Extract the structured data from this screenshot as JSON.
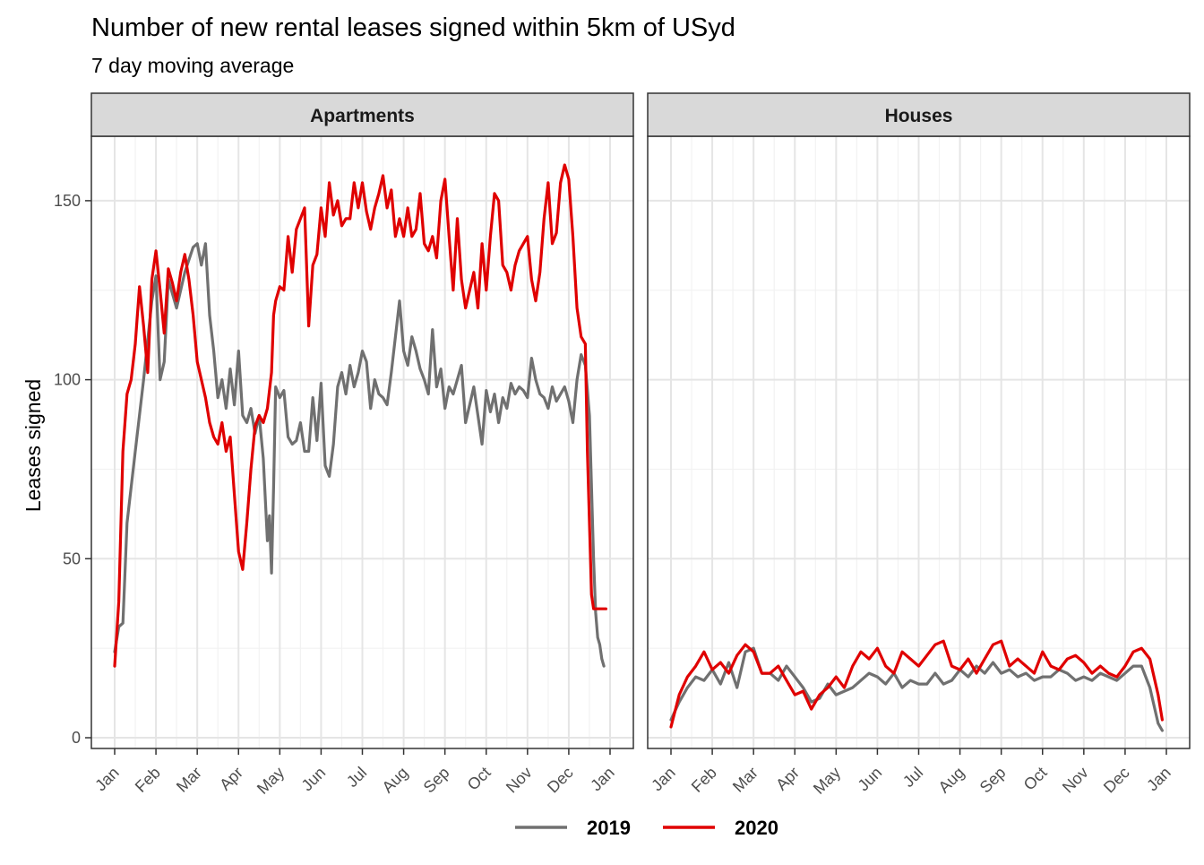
{
  "chart_data": {
    "type": "line",
    "title": "Number of new rental leases signed within 5km of USyd",
    "subtitle": "7 day moving average",
    "xlabel": "",
    "ylabel": "Leases signed",
    "ylim": [
      -3,
      168
    ],
    "yticks": [
      0,
      50,
      100,
      150
    ],
    "xticks": [
      "Jan",
      "Feb",
      "Mar",
      "Apr",
      "May",
      "Jun",
      "Jul",
      "Aug",
      "Sep",
      "Oct",
      "Nov",
      "Dec",
      "Jan"
    ],
    "grid": true,
    "legend_position": "bottom",
    "colors": {
      "2019": "#707070",
      "2020": "#e00000"
    },
    "panels": [
      {
        "name": "Apartments",
        "series": [
          {
            "name": "2019",
            "x_month": [
              0,
              0.1,
              0.2,
              0.3,
              0.5,
              0.7,
              0.9,
              1.0,
              1.1,
              1.2,
              1.3,
              1.5,
              1.7,
              1.9,
              2.0,
              2.1,
              2.2,
              2.3,
              2.4,
              2.5,
              2.6,
              2.7,
              2.8,
              2.9,
              3.0,
              3.1,
              3.2,
              3.3,
              3.4,
              3.5,
              3.6,
              3.7,
              3.75,
              3.8,
              3.85,
              3.9,
              4.0,
              4.1,
              4.2,
              4.3,
              4.4,
              4.5,
              4.6,
              4.7,
              4.8,
              4.9,
              5.0,
              5.1,
              5.2,
              5.3,
              5.4,
              5.5,
              5.6,
              5.7,
              5.8,
              5.9,
              6.0,
              6.1,
              6.2,
              6.3,
              6.4,
              6.5,
              6.6,
              6.7,
              6.8,
              6.9,
              7.0,
              7.1,
              7.2,
              7.3,
              7.4,
              7.5,
              7.6,
              7.7,
              7.8,
              7.9,
              8.0,
              8.1,
              8.2,
              8.3,
              8.4,
              8.5,
              8.6,
              8.7,
              8.8,
              8.9,
              9.0,
              9.1,
              9.2,
              9.3,
              9.4,
              9.5,
              9.6,
              9.7,
              9.8,
              9.9,
              10.0,
              10.1,
              10.2,
              10.3,
              10.4,
              10.5,
              10.6,
              10.7,
              10.8,
              10.9,
              11.0,
              11.1,
              11.2,
              11.3,
              11.4,
              11.5,
              11.55,
              11.6,
              11.65,
              11.7,
              11.75,
              11.8,
              11.85
            ],
            "values": [
              24,
              31,
              32,
              60,
              80,
              100,
              122,
              129,
              100,
              105,
              128,
              120,
              130,
              137,
              138,
              132,
              138,
              118,
              108,
              95,
              100,
              92,
              103,
              93,
              108,
              90,
              88,
              92,
              85,
              90,
              78,
              55,
              62,
              46,
              70,
              98,
              95,
              97,
              84,
              82,
              83,
              88,
              80,
              80,
              95,
              83,
              99,
              76,
              73,
              82,
              98,
              102,
              96,
              104,
              98,
              102,
              108,
              105,
              92,
              100,
              96,
              95,
              93,
              102,
              112,
              122,
              108,
              104,
              112,
              108,
              103,
              100,
              96,
              114,
              98,
              103,
              92,
              98,
              96,
              100,
              104,
              88,
              93,
              98,
              90,
              82,
              97,
              91,
              96,
              88,
              95,
              92,
              99,
              96,
              98,
              97,
              95,
              106,
              100,
              96,
              95,
              92,
              98,
              94,
              96,
              98,
              94,
              88,
              100,
              107,
              104,
              90,
              70,
              50,
              35,
              28,
              26,
              22,
              20
            ]
          },
          {
            "name": "2020",
            "x_month": [
              0,
              0.1,
              0.2,
              0.3,
              0.4,
              0.5,
              0.6,
              0.7,
              0.8,
              0.9,
              1.0,
              1.1,
              1.2,
              1.3,
              1.4,
              1.5,
              1.6,
              1.7,
              1.8,
              1.9,
              2.0,
              2.1,
              2.2,
              2.3,
              2.4,
              2.5,
              2.6,
              2.7,
              2.8,
              2.9,
              3.0,
              3.1,
              3.2,
              3.3,
              3.4,
              3.5,
              3.6,
              3.7,
              3.8,
              3.85,
              3.9,
              4.0,
              4.1,
              4.2,
              4.3,
              4.4,
              4.5,
              4.6,
              4.7,
              4.8,
              4.9,
              5.0,
              5.1,
              5.2,
              5.3,
              5.4,
              5.5,
              5.6,
              5.7,
              5.8,
              5.9,
              6.0,
              6.1,
              6.2,
              6.3,
              6.4,
              6.5,
              6.6,
              6.7,
              6.8,
              6.9,
              7.0,
              7.1,
              7.2,
              7.3,
              7.4,
              7.5,
              7.6,
              7.7,
              7.8,
              7.9,
              8.0,
              8.1,
              8.2,
              8.3,
              8.4,
              8.5,
              8.6,
              8.7,
              8.8,
              8.9,
              9.0,
              9.1,
              9.2,
              9.3,
              9.4,
              9.5,
              9.6,
              9.7,
              9.8,
              9.9,
              10.0,
              10.1,
              10.2,
              10.3,
              10.4,
              10.5,
              10.6,
              10.7,
              10.8,
              10.9,
              11.0,
              11.1,
              11.2,
              11.3,
              11.4,
              11.45,
              11.5,
              11.55,
              11.6,
              11.65,
              11.7,
              11.8,
              11.9
            ],
            "values": [
              20,
              38,
              80,
              96,
              100,
              110,
              126,
              115,
              102,
              128,
              136,
              125,
              113,
              131,
              127,
              122,
              130,
              135,
              128,
              118,
              105,
              100,
              95,
              88,
              84,
              82,
              88,
              80,
              84,
              68,
              52,
              47,
              60,
              75,
              87,
              90,
              88,
              92,
              102,
              118,
              122,
              126,
              125,
              140,
              130,
              142,
              145,
              148,
              115,
              132,
              135,
              148,
              140,
              155,
              146,
              150,
              143,
              145,
              145,
              155,
              148,
              155,
              147,
              142,
              148,
              152,
              157,
              148,
              153,
              140,
              145,
              140,
              148,
              140,
              142,
              152,
              138,
              136,
              140,
              134,
              150,
              156,
              140,
              125,
              145,
              128,
              120,
              125,
              130,
              120,
              138,
              125,
              140,
              152,
              150,
              132,
              130,
              125,
              132,
              136,
              138,
              140,
              128,
              122,
              130,
              145,
              155,
              138,
              141,
              155,
              160,
              156,
              140,
              120,
              112,
              110,
              80,
              60,
              40,
              36,
              36,
              36,
              36,
              36
            ]
          }
        ]
      },
      {
        "name": "Houses",
        "series": [
          {
            "name": "2019",
            "x_month": [
              0,
              0.2,
              0.4,
              0.6,
              0.8,
              1.0,
              1.2,
              1.4,
              1.6,
              1.8,
              2.0,
              2.2,
              2.4,
              2.6,
              2.8,
              3.0,
              3.2,
              3.4,
              3.6,
              3.8,
              4.0,
              4.2,
              4.4,
              4.6,
              4.8,
              5.0,
              5.2,
              5.4,
              5.6,
              5.8,
              6.0,
              6.2,
              6.4,
              6.6,
              6.8,
              7.0,
              7.2,
              7.4,
              7.6,
              7.8,
              8.0,
              8.2,
              8.4,
              8.6,
              8.8,
              9.0,
              9.2,
              9.4,
              9.6,
              9.8,
              10.0,
              10.2,
              10.4,
              10.6,
              10.8,
              11.0,
              11.2,
              11.4,
              11.6,
              11.8,
              11.9
            ],
            "values": [
              5,
              10,
              14,
              17,
              16,
              19,
              15,
              21,
              14,
              24,
              25,
              18,
              18,
              16,
              20,
              17,
              14,
              10,
              11,
              15,
              12,
              13,
              14,
              16,
              18,
              17,
              15,
              18,
              14,
              16,
              15,
              15,
              18,
              15,
              16,
              19,
              17,
              20,
              18,
              21,
              18,
              19,
              17,
              18,
              16,
              17,
              17,
              19,
              18,
              16,
              17,
              16,
              18,
              17,
              16,
              18,
              20,
              20,
              14,
              4,
              2
            ]
          },
          {
            "name": "2020",
            "x_month": [
              0,
              0.2,
              0.4,
              0.6,
              0.8,
              1.0,
              1.2,
              1.4,
              1.6,
              1.8,
              2.0,
              2.2,
              2.4,
              2.6,
              2.8,
              3.0,
              3.2,
              3.4,
              3.6,
              3.8,
              4.0,
              4.2,
              4.4,
              4.6,
              4.8,
              5.0,
              5.2,
              5.4,
              5.6,
              5.8,
              6.0,
              6.2,
              6.4,
              6.6,
              6.8,
              7.0,
              7.2,
              7.4,
              7.6,
              7.8,
              8.0,
              8.2,
              8.4,
              8.6,
              8.8,
              9.0,
              9.2,
              9.4,
              9.6,
              9.8,
              10.0,
              10.2,
              10.4,
              10.6,
              10.8,
              11.0,
              11.2,
              11.4,
              11.6,
              11.8,
              11.9
            ],
            "values": [
              3,
              12,
              17,
              20,
              24,
              19,
              21,
              18,
              23,
              26,
              24,
              18,
              18,
              20,
              16,
              12,
              13,
              8,
              12,
              14,
              17,
              14,
              20,
              24,
              22,
              25,
              20,
              18,
              24,
              22,
              20,
              23,
              26,
              27,
              20,
              19,
              22,
              18,
              22,
              26,
              27,
              20,
              22,
              20,
              18,
              24,
              20,
              19,
              22,
              23,
              21,
              18,
              20,
              18,
              17,
              20,
              24,
              25,
              22,
              12,
              5
            ]
          }
        ]
      }
    ]
  }
}
